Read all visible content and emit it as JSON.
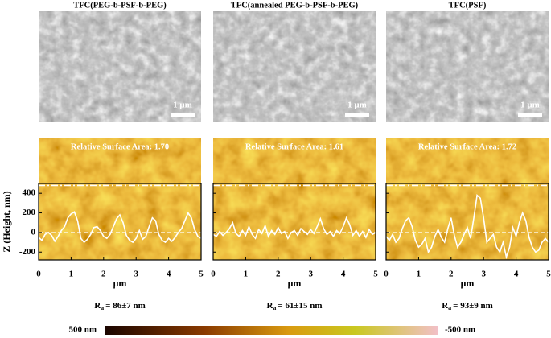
{
  "chart_data": [
    {
      "type": "line",
      "title": "TFC(PEG-b-PSF-b-PEG)",
      "subtitle": "Relative Surface Area: 1.70",
      "scale_bar": "1 μm",
      "xlabel": "μm",
      "ylabel": "Z (Height, nm)",
      "ra_symbol": "R",
      "ra_subscript": "a",
      "ra_value": "= 86±7 nm",
      "xlim": [
        0,
        5
      ],
      "xticks": [
        0,
        1,
        2,
        3,
        4,
        5
      ],
      "ylim": [
        -280,
        500
      ],
      "yticks": [
        -200,
        0,
        200,
        400
      ],
      "reference_lines": [
        480,
        0
      ],
      "color": "#ffffff",
      "x": [
        0,
        0.1,
        0.2,
        0.3,
        0.4,
        0.5,
        0.6,
        0.7,
        0.8,
        0.9,
        1,
        1.1,
        1.2,
        1.3,
        1.4,
        1.5,
        1.6,
        1.7,
        1.8,
        1.9,
        2,
        2.1,
        2.2,
        2.3,
        2.4,
        2.5,
        2.6,
        2.7,
        2.8,
        2.9,
        3,
        3.1,
        3.2,
        3.3,
        3.4,
        3.5,
        3.6,
        3.7,
        3.8,
        3.9,
        4,
        4.1,
        4.2,
        4.3,
        4.4,
        4.5,
        4.6,
        4.7,
        4.8,
        4.9,
        5
      ],
      "values": [
        -50,
        -80,
        -20,
        0,
        -30,
        -90,
        -40,
        20,
        60,
        150,
        190,
        210,
        120,
        -60,
        -100,
        -70,
        -20,
        50,
        60,
        20,
        -40,
        -60,
        -20,
        60,
        140,
        180,
        100,
        -30,
        -80,
        -100,
        -60,
        20,
        -70,
        -40,
        60,
        150,
        120,
        -20,
        -80,
        -100,
        -60,
        -90,
        -50,
        0,
        40,
        120,
        200,
        150,
        30,
        -40,
        -60
      ]
    },
    {
      "type": "line",
      "title": "TFC(annealed PEG-b-PSF-b-PEG)",
      "subtitle": "Relative Surface Area: 1.61",
      "scale_bar": "1 μm",
      "xlabel": "μm",
      "ra_symbol": "R",
      "ra_subscript": "a",
      "ra_value": "= 61±15 nm",
      "xlim": [
        0,
        5
      ],
      "xticks": [
        0,
        1,
        2,
        3,
        4,
        5
      ],
      "ylim": [
        -280,
        500
      ],
      "yticks": [
        -200,
        0,
        200,
        400
      ],
      "reference_lines": [
        480,
        0
      ],
      "color": "#ffffff",
      "x": [
        0,
        0.1,
        0.2,
        0.3,
        0.4,
        0.5,
        0.6,
        0.7,
        0.8,
        0.9,
        1,
        1.1,
        1.2,
        1.3,
        1.4,
        1.5,
        1.6,
        1.7,
        1.8,
        1.9,
        2,
        2.1,
        2.2,
        2.3,
        2.4,
        2.5,
        2.6,
        2.7,
        2.8,
        2.9,
        3,
        3.1,
        3.2,
        3.3,
        3.4,
        3.5,
        3.6,
        3.7,
        3.8,
        3.9,
        4,
        4.1,
        4.2,
        4.3,
        4.4,
        4.5,
        4.6,
        4.7,
        4.8,
        4.9,
        5
      ],
      "values": [
        -20,
        -40,
        10,
        -30,
        0,
        40,
        100,
        -10,
        -40,
        20,
        -30,
        60,
        -20,
        -60,
        30,
        -10,
        70,
        -40,
        20,
        -20,
        50,
        -10,
        10,
        -60,
        0,
        20,
        -30,
        40,
        10,
        -20,
        30,
        -10,
        60,
        140,
        40,
        -20,
        10,
        -40,
        20,
        -10,
        60,
        150,
        80,
        -30,
        20,
        -40,
        10,
        -50,
        30,
        -20,
        0
      ]
    },
    {
      "type": "line",
      "title": "TFC(PSF)",
      "subtitle": "Relative Surface Area: 1.72",
      "scale_bar": "1 μm",
      "xlabel": "μm",
      "ra_symbol": "R",
      "ra_subscript": "a",
      "ra_value": "= 93±9 nm",
      "xlim": [
        0,
        5
      ],
      "xticks": [
        0,
        1,
        2,
        3,
        4,
        5
      ],
      "ylim": [
        -280,
        500
      ],
      "yticks": [
        -200,
        0,
        200,
        400
      ],
      "reference_lines": [
        480,
        0
      ],
      "color": "#ffffff",
      "x": [
        0,
        0.1,
        0.2,
        0.3,
        0.4,
        0.5,
        0.6,
        0.7,
        0.8,
        0.9,
        1,
        1.1,
        1.2,
        1.3,
        1.4,
        1.5,
        1.6,
        1.7,
        1.8,
        1.9,
        2,
        2.1,
        2.2,
        2.3,
        2.4,
        2.5,
        2.6,
        2.7,
        2.8,
        2.9,
        3,
        3.1,
        3.2,
        3.3,
        3.4,
        3.5,
        3.6,
        3.7,
        3.8,
        3.9,
        4,
        4.1,
        4.2,
        4.3,
        4.4,
        4.5,
        4.6,
        4.7,
        4.8,
        4.9,
        5
      ],
      "values": [
        -40,
        -80,
        -20,
        -100,
        -60,
        40,
        120,
        150,
        60,
        -80,
        -150,
        -120,
        -60,
        -200,
        -150,
        -40,
        30,
        -50,
        -100,
        40,
        150,
        -30,
        -150,
        -100,
        -20,
        50,
        -60,
        150,
        380,
        350,
        150,
        -100,
        -60,
        -20,
        -150,
        -200,
        -100,
        -250,
        -150,
        50,
        -40,
        100,
        200,
        120,
        -50,
        -150,
        -200,
        -180,
        -100,
        -60,
        -100
      ]
    }
  ],
  "colorbar": {
    "max_label": "500 nm",
    "min_label": "-500 nm"
  }
}
